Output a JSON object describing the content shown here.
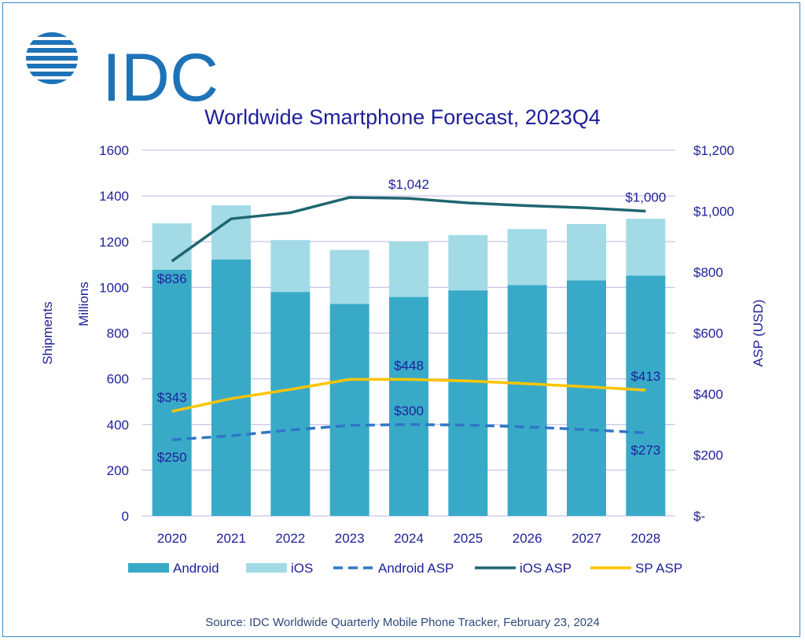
{
  "brand": {
    "name": "IDC",
    "color": "#1e73b8"
  },
  "source": "Source:  IDC Worldwide Quarterly Mobile Phone Tracker, February 23, 2024",
  "chart_data": {
    "type": "bar",
    "title": "Worldwide Smartphone Forecast, 2023Q4",
    "ylabel": "Millions",
    "ylabel_outer": "Shipments",
    "y2label": "ASP (USD)",
    "ylim": [
      0,
      1600
    ],
    "y2lim": [
      0,
      1200
    ],
    "yticks": [
      "0",
      "200",
      "400",
      "600",
      "800",
      "1000",
      "1200",
      "1400",
      "1600"
    ],
    "y2ticks": [
      "$-",
      "$200",
      "$400",
      "$600",
      "$800",
      "$1,000",
      "$1,200"
    ],
    "grid": true,
    "legend_position": "bottom",
    "categories": [
      "2020",
      "2021",
      "2022",
      "2023",
      "2024",
      "2025",
      "2026",
      "2027",
      "2028"
    ],
    "series": [
      {
        "name": "Android",
        "kind": "stacked-bar",
        "axis": "left",
        "color": "#38aac8",
        "values": [
          1077,
          1122,
          980,
          928,
          958,
          987,
          1010,
          1031,
          1052
        ]
      },
      {
        "name": "iOS",
        "kind": "stacked-bar",
        "axis": "left",
        "color": "#a2dbe6",
        "values": [
          203,
          237,
          227,
          236,
          242,
          242,
          245,
          246,
          248
        ]
      },
      {
        "name": "Android ASP",
        "kind": "dashed-line",
        "axis": "right",
        "color": "#2f77c6",
        "values": [
          250,
          263,
          282,
          297,
          300,
          298,
          292,
          283,
          273
        ]
      },
      {
        "name": "iOS ASP",
        "kind": "line",
        "axis": "right",
        "color": "#1f6670",
        "values": [
          836,
          975,
          995,
          1045,
          1042,
          1027,
          1018,
          1011,
          1000
        ]
      },
      {
        "name": "SP ASP",
        "kind": "line",
        "axis": "right",
        "color": "#ffc400",
        "values": [
          343,
          385,
          415,
          448,
          448,
          443,
          434,
          424,
          413
        ]
      }
    ],
    "annotations": [
      {
        "text": "$836",
        "series": "iOS ASP",
        "index": 0,
        "pos": "below"
      },
      {
        "text": "$1,042",
        "series": "iOS ASP",
        "index": 4,
        "pos": "above"
      },
      {
        "text": "$1,000",
        "series": "iOS ASP",
        "index": 8,
        "pos": "above"
      },
      {
        "text": "$343",
        "series": "SP ASP",
        "index": 0,
        "pos": "above"
      },
      {
        "text": "$448",
        "series": "SP ASP",
        "index": 4,
        "pos": "above"
      },
      {
        "text": "$413",
        "series": "SP ASP",
        "index": 8,
        "pos": "above"
      },
      {
        "text": "$250",
        "series": "Android ASP",
        "index": 0,
        "pos": "below"
      },
      {
        "text": "$300",
        "series": "Android ASP",
        "index": 4,
        "pos": "above"
      },
      {
        "text": "$273",
        "series": "Android ASP",
        "index": 8,
        "pos": "below"
      }
    ]
  }
}
